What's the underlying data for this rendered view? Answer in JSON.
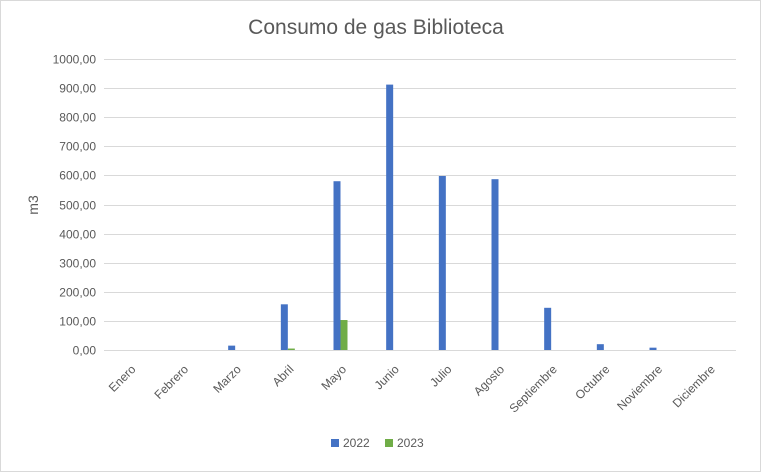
{
  "chart_data": {
    "type": "bar",
    "title": "Consumo de gas Biblioteca",
    "xlabel": "",
    "ylabel": "m3",
    "ylim": [
      0,
      1000
    ],
    "ytick_step": 100,
    "ytick_labels": [
      "0,00",
      "100,00",
      "200,00",
      "300,00",
      "400,00",
      "500,00",
      "600,00",
      "700,00",
      "800,00",
      "900,00",
      "1000,00"
    ],
    "categories": [
      "Enero",
      "Febrero",
      "Marzo",
      "Abril",
      "Mayo",
      "Junio",
      "Julio",
      "Agosto",
      "Septiembre",
      "Octubre",
      "Noviembre",
      "Diciembre"
    ],
    "series": [
      {
        "name": "2022",
        "color": "#4472c4",
        "values": [
          0,
          0,
          15,
          157,
          580,
          912,
          598,
          587,
          145,
          20,
          8,
          0
        ]
      },
      {
        "name": "2023",
        "color": "#70ad47",
        "values": [
          0,
          0,
          0,
          5,
          103,
          0,
          0,
          0,
          0,
          0,
          0,
          0
        ]
      }
    ],
    "grid": true,
    "legend_position": "bottom"
  }
}
